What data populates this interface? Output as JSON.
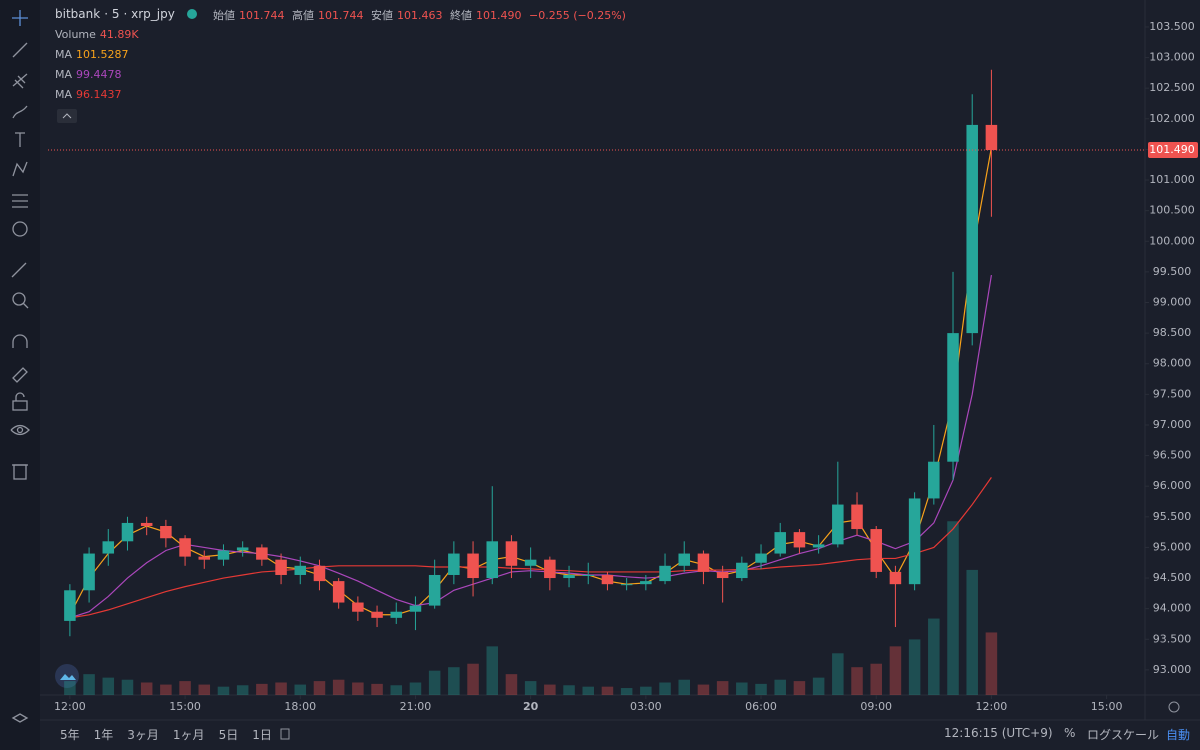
{
  "header": {
    "exchange": "bitbank",
    "interval": "5",
    "symbol": "xrp_jpy",
    "ohlc_labels": [
      "始値",
      "高値",
      "安値",
      "終値"
    ],
    "ohlc_values": [
      "101.744",
      "101.744",
      "101.463",
      "101.490"
    ],
    "change": "−0.255 (−0.25%)"
  },
  "legend": {
    "volume_label": "Volume",
    "volume_value": "41.89K",
    "ma_label": "MA"
  },
  "toolbar": {
    "ranges": [
      "5年",
      "1年",
      "3ヶ月",
      "1ヶ月",
      "5日",
      "1日"
    ],
    "clock": "12:16:15 (UTC+9)",
    "percent": "%",
    "log": "ログスケール",
    "auto": "自動"
  },
  "chart_data": {
    "type": "candlestick",
    "x": [
      12,
      12.5,
      13,
      13.5,
      14,
      14.5,
      15,
      15.5,
      16,
      16.5,
      17,
      17.5,
      18,
      18.5,
      19,
      19.5,
      20,
      20.5,
      21,
      21.5,
      22,
      22.5,
      23,
      23.5,
      24,
      24.5,
      25,
      25.5,
      26,
      26.5,
      27,
      27.5,
      28,
      28.5,
      29,
      29.5,
      30,
      30.5,
      31,
      31.5,
      32,
      32.5,
      33,
      33.5,
      34,
      34.5,
      35,
      35.5,
      36
    ],
    "open": [
      93.8,
      94.3,
      94.9,
      95.1,
      95.4,
      95.35,
      95.15,
      94.85,
      94.8,
      94.95,
      95.0,
      94.8,
      94.55,
      94.7,
      94.45,
      94.1,
      93.95,
      93.85,
      93.95,
      94.05,
      94.55,
      94.9,
      94.5,
      95.1,
      94.7,
      94.8,
      94.5,
      94.55,
      94.55,
      94.4,
      94.4,
      94.45,
      94.7,
      94.9,
      94.6,
      94.5,
      94.75,
      94.9,
      95.25,
      95.0,
      95.05,
      95.7,
      95.3,
      94.6,
      94.4,
      95.8,
      96.4,
      98.5,
      101.9
    ],
    "high": [
      94.4,
      95.0,
      95.3,
      95.5,
      95.5,
      95.45,
      95.2,
      94.95,
      95.05,
      95.1,
      95.05,
      94.9,
      94.85,
      94.8,
      94.5,
      94.2,
      94.05,
      94.1,
      94.2,
      94.8,
      95.1,
      95.1,
      96.0,
      95.2,
      95.0,
      94.85,
      94.7,
      94.75,
      94.6,
      94.5,
      94.55,
      94.9,
      95.1,
      94.95,
      94.7,
      94.85,
      95.05,
      95.4,
      95.3,
      95.2,
      96.4,
      95.9,
      95.35,
      94.7,
      95.9,
      97.0,
      99.5,
      102.4,
      102.8
    ],
    "low": [
      93.55,
      94.1,
      94.7,
      94.95,
      95.2,
      95.0,
      94.7,
      94.65,
      94.7,
      94.85,
      94.7,
      94.4,
      94.4,
      94.3,
      94.0,
      93.8,
      93.7,
      93.75,
      93.65,
      94.0,
      94.4,
      94.2,
      94.4,
      94.5,
      94.5,
      94.3,
      94.35,
      94.4,
      94.3,
      94.3,
      94.3,
      94.4,
      94.6,
      94.4,
      94.1,
      94.45,
      94.65,
      94.85,
      94.9,
      94.9,
      95.0,
      95.2,
      94.5,
      93.7,
      94.3,
      95.7,
      96.1,
      98.3,
      100.4
    ],
    "close": [
      94.3,
      94.9,
      95.1,
      95.4,
      95.35,
      95.15,
      94.85,
      94.8,
      94.95,
      95.0,
      94.8,
      94.55,
      94.7,
      94.45,
      94.1,
      93.95,
      93.85,
      93.95,
      94.05,
      94.55,
      94.9,
      94.5,
      95.1,
      94.7,
      94.8,
      94.5,
      94.55,
      94.55,
      94.4,
      94.4,
      94.45,
      94.7,
      94.9,
      94.6,
      94.5,
      94.75,
      94.9,
      95.25,
      95.0,
      95.05,
      95.7,
      95.3,
      94.6,
      94.4,
      95.8,
      96.4,
      98.5,
      101.9,
      101.49
    ],
    "volume": [
      20,
      30,
      25,
      22,
      18,
      15,
      20,
      15,
      12,
      14,
      16,
      18,
      15,
      20,
      22,
      18,
      16,
      14,
      18,
      35,
      40,
      45,
      70,
      30,
      20,
      15,
      14,
      12,
      12,
      10,
      12,
      18,
      22,
      15,
      20,
      18,
      16,
      22,
      20,
      25,
      60,
      40,
      45,
      70,
      80,
      110,
      250,
      180,
      90
    ],
    "up_color": "#26a69a",
    "down_color": "#ef5350",
    "series": [
      {
        "name": "MA",
        "color": "#f7a21b",
        "values": [
          93.9,
          94.5,
          94.9,
          95.2,
          95.35,
          95.25,
          95.0,
          94.85,
          94.88,
          94.95,
          94.88,
          94.68,
          94.65,
          94.55,
          94.3,
          94.05,
          93.9,
          93.9,
          94.0,
          94.3,
          94.7,
          94.65,
          94.8,
          94.85,
          94.75,
          94.6,
          94.55,
          94.55,
          94.45,
          94.4,
          94.42,
          94.58,
          94.8,
          94.72,
          94.55,
          94.62,
          94.82,
          95.05,
          95.1,
          95.02,
          95.4,
          95.45,
          94.95,
          94.5,
          95.1,
          96.1,
          97.4,
          99.8,
          101.5287
        ]
      },
      {
        "name": "MA",
        "color": "#ab47bc",
        "values": [
          93.85,
          93.95,
          94.2,
          94.5,
          94.75,
          94.95,
          95.05,
          95.0,
          94.95,
          94.92,
          94.9,
          94.85,
          94.78,
          94.7,
          94.58,
          94.45,
          94.3,
          94.15,
          94.05,
          94.1,
          94.3,
          94.4,
          94.5,
          94.6,
          94.62,
          94.6,
          94.58,
          94.55,
          94.55,
          94.52,
          94.5,
          94.52,
          94.58,
          94.62,
          94.6,
          94.62,
          94.7,
          94.8,
          94.9,
          94.98,
          95.1,
          95.2,
          95.1,
          94.98,
          95.1,
          95.4,
          96.1,
          97.5,
          99.4478
        ]
      },
      {
        "name": "MA",
        "color": "#e53935",
        "values": [
          93.85,
          93.9,
          93.98,
          94.08,
          94.18,
          94.28,
          94.36,
          94.43,
          94.5,
          94.55,
          94.6,
          94.62,
          94.65,
          94.68,
          94.7,
          94.7,
          94.7,
          94.7,
          94.7,
          94.68,
          94.68,
          94.68,
          94.68,
          94.66,
          94.65,
          94.63,
          94.62,
          94.6,
          94.6,
          94.6,
          94.6,
          94.6,
          94.62,
          94.63,
          94.63,
          94.64,
          94.65,
          94.68,
          94.7,
          94.72,
          94.76,
          94.8,
          94.82,
          94.82,
          94.9,
          95.0,
          95.3,
          95.7,
          96.1437
        ]
      }
    ],
    "last_price": {
      "value": 101.49,
      "label": "101.490"
    },
    "xlim": [
      11.43,
      40.0
    ],
    "ylim": [
      92.59,
      103.94
    ],
    "volume_lim": [
      0,
      1000
    ],
    "xticks": [
      {
        "value": 12,
        "label": "12:00"
      },
      {
        "value": 15,
        "label": "15:00"
      },
      {
        "value": 18,
        "label": "18:00"
      },
      {
        "value": 21,
        "label": "21:00"
      },
      {
        "value": 24,
        "label": "20"
      },
      {
        "value": 27,
        "label": "03:00"
      },
      {
        "value": 30,
        "label": "06:00"
      },
      {
        "value": 33,
        "label": "09:00"
      },
      {
        "value": 36,
        "label": "12:00"
      },
      {
        "value": 39,
        "label": "15:00"
      }
    ],
    "yticks": [
      {
        "value": 93,
        "label": "93.000"
      },
      {
        "value": 93.5,
        "label": "93.500"
      },
      {
        "value": 94,
        "label": "94.000"
      },
      {
        "value": 94.5,
        "label": "94.500"
      },
      {
        "value": 95,
        "label": "95.000"
      },
      {
        "value": 95.5,
        "label": "95.500"
      },
      {
        "value": 96,
        "label": "96.000"
      },
      {
        "value": 96.5,
        "label": "96.500"
      },
      {
        "value": 97,
        "label": "97.000"
      },
      {
        "value": 97.5,
        "label": "97.500"
      },
      {
        "value": 98,
        "label": "98.000"
      },
      {
        "value": 98.5,
        "label": "98.500"
      },
      {
        "value": 99,
        "label": "99.000"
      },
      {
        "value": 99.5,
        "label": "99.500"
      },
      {
        "value": 100,
        "label": "100.000"
      },
      {
        "value": 100.5,
        "label": "100.500"
      },
      {
        "value": 101,
        "label": "101.000"
      },
      {
        "value": 101.5,
        "label": "101.500"
      },
      {
        "value": 102,
        "label": "102.000"
      },
      {
        "value": 102.5,
        "label": "102.500"
      },
      {
        "value": 103,
        "label": "103.000"
      },
      {
        "value": 103.5,
        "label": "103.500"
      }
    ]
  }
}
